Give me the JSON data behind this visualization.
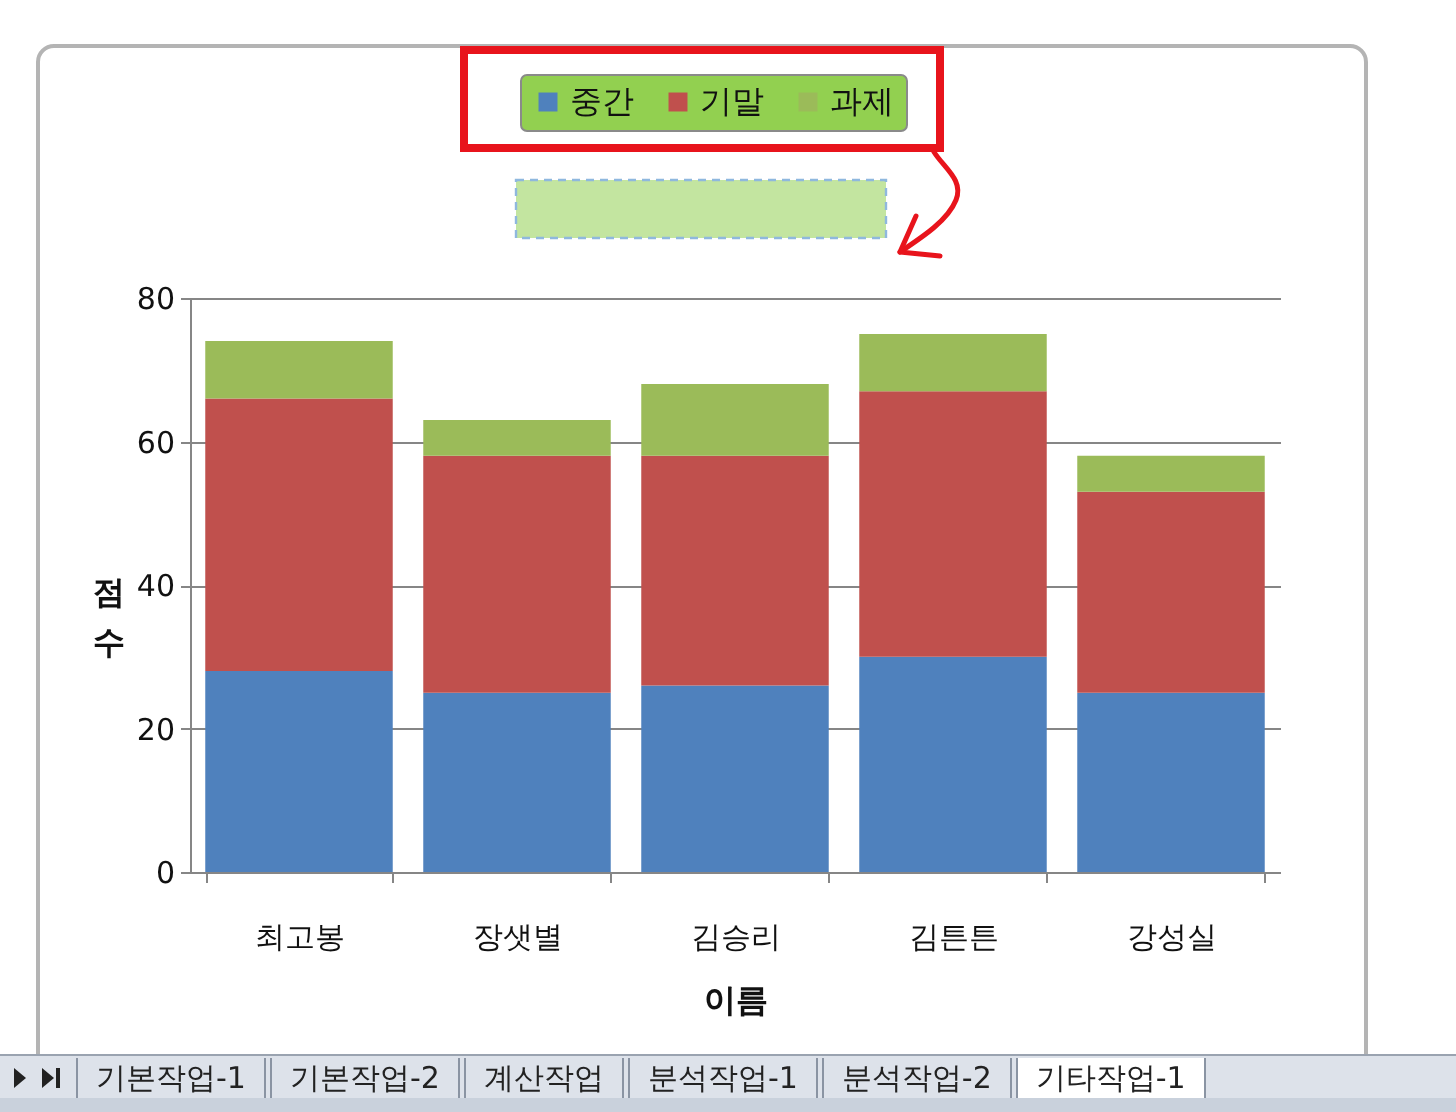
{
  "chart_data": {
    "type": "bar",
    "stacked": true,
    "xlabel": "이름",
    "ylabel": "점수",
    "categories": [
      "최고봉",
      "장샛별",
      "김승리",
      "김튼튼",
      "강성실"
    ],
    "series": [
      {
        "name": "중간",
        "color": "#4f81bd",
        "values": [
          28,
          25,
          26,
          30,
          25
        ]
      },
      {
        "name": "기말",
        "color": "#c0504d",
        "values": [
          38,
          33,
          32,
          37,
          28
        ]
      },
      {
        "name": "과제",
        "color": "#9bbb59",
        "values": [
          8,
          5,
          10,
          8,
          5
        ]
      }
    ],
    "ylim": [
      0,
      80
    ],
    "yticks": [
      0,
      20,
      40,
      60,
      80
    ],
    "grid": "y",
    "legend": "top",
    "annotations": [
      "기본작업-1",
      "기본작업-2",
      "계산작업",
      "분석작업-1",
      "분석작업-2",
      "기타작업-1"
    ]
  }
}
